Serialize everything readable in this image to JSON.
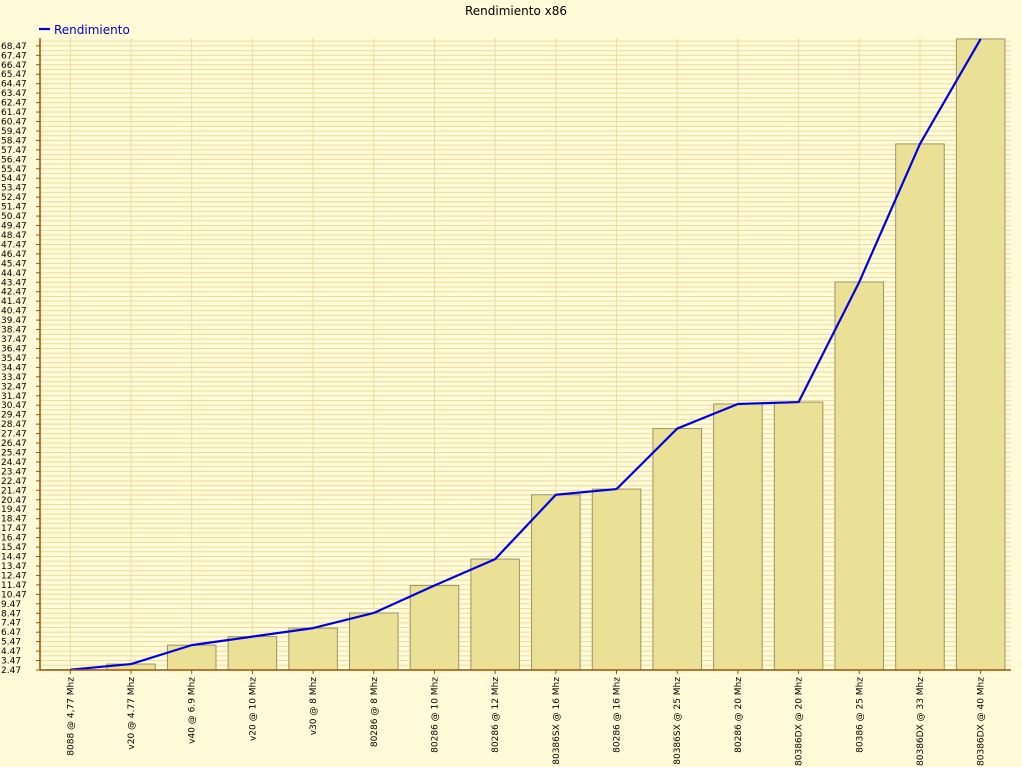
{
  "chart_data": {
    "type": "bar",
    "title": "Rendimiento x86",
    "xlabel": "",
    "ylabel": "",
    "categories": [
      "8088 @ 4,77 Mhz",
      "v20 @ 4.77 Mhz",
      "v40 @ 6.9 Mhz",
      "v20 @ 10 Mhz",
      "v30 @ 8 Mhz",
      "80286 @ 8 Mhz",
      "80286 @ 10 Mhz",
      "80286 @ 12 Mhz",
      "80386SX @ 16 Mhz",
      "80286 @ 16 Mhz",
      "80386SX @ 25 Mhz",
      "80286 @ 20 Mhz",
      "80386DX @ 20 Mhz",
      "80386 @ 25 Mhz",
      "80386DX @ 33 Mhz",
      "80386DX @ 40 Mhz"
    ],
    "series": [
      {
        "name": "Rendimiento",
        "values": [
          2.5,
          3.1,
          5.1,
          6.0,
          6.9,
          8.5,
          11.4,
          14.2,
          21.0,
          21.6,
          28.0,
          30.6,
          30.8,
          43.5,
          58.1,
          69.2
        ]
      }
    ],
    "ylim": [
      2.47,
      69.3
    ],
    "yticks": [
      "2.47",
      "3.47",
      "4.47",
      "5.47",
      "6.47",
      "7.47",
      "8.47",
      "9.47",
      "10.47",
      "11.47",
      "12.47",
      "13.47",
      "14.47",
      "15.47",
      "16.47",
      "17.47",
      "18.47",
      "19.47",
      "20.47",
      "21.47",
      "22.47",
      "23.47",
      "24.47",
      "25.47",
      "26.47",
      "27.47",
      "28.47",
      "29.47",
      "30.47",
      "31.47",
      "32.47",
      "33.47",
      "34.47",
      "35.47",
      "36.47",
      "37.47",
      "38.47",
      "39.47",
      "40.47",
      "41.47",
      "42.47",
      "43.47",
      "44.47",
      "45.47",
      "46.47",
      "47.47",
      "48.47",
      "49.47",
      "50.47",
      "51.47",
      "52.47",
      "53.47",
      "54.47",
      "55.47",
      "56.47",
      "57.47",
      "58.47",
      "59.47",
      "60.47",
      "61.47",
      "62.47",
      "63.47",
      "64.47",
      "65.47",
      "66.47",
      "67.47",
      "68.47"
    ],
    "grid": true,
    "legend_position": "top-left",
    "display": "bars with overlaid line",
    "colors": {
      "background": "#fffbd9",
      "bar_fill": "#ebe196",
      "bar_stroke": "#9a9468",
      "line": "#0000e0",
      "legend_text": "#0000c8",
      "grid": "#ecdc9c",
      "axis": "#a05000"
    }
  }
}
